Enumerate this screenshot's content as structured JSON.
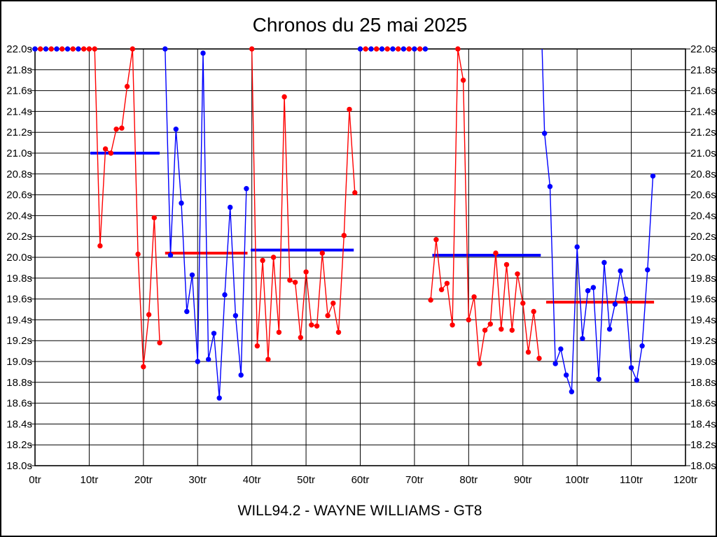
{
  "chart_data": {
    "type": "line",
    "title": "Chronos du 25 mai 2025",
    "footer": "WILL94.2 - WAYNE WILLIAMS - GT8",
    "x_axis": {
      "label_unit": "tr",
      "min": 0,
      "max": 120,
      "tick_step": 10,
      "tick_labels": [
        "0tr",
        "10tr",
        "20tr",
        "30tr",
        "40tr",
        "50tr",
        "60tr",
        "70tr",
        "80tr",
        "90tr",
        "100tr",
        "110tr",
        "120tr"
      ]
    },
    "y_axis": {
      "label_unit": "s",
      "min": 18.0,
      "max": 22.0,
      "tick_step": 0.2,
      "clip_max": 22.0,
      "tick_labels": [
        "22.0s",
        "21.8s",
        "21.6s",
        "21.4s",
        "21.2s",
        "21.0s",
        "20.8s",
        "20.6s",
        "20.4s",
        "20.2s",
        "20.0s",
        "19.8s",
        "19.6s",
        "19.4s",
        "19.2s",
        "19.0s",
        "18.8s",
        "18.6s",
        "18.4s",
        "18.2s",
        "18.0s"
      ]
    },
    "colors": {
      "red": "#ff0000",
      "blue": "#0000ff",
      "grid": "#000000",
      "background": "#ffffff"
    },
    "grid": true,
    "legend": "none",
    "series": [
      {
        "name": "stint-1-red",
        "color": "red",
        "points": [
          [
            0,
            22.0,
            "b"
          ],
          [
            1,
            22.0,
            "r"
          ],
          [
            2,
            22.0,
            "b"
          ],
          [
            3,
            22.0,
            "r"
          ],
          [
            4,
            22.0,
            "b"
          ],
          [
            5,
            22.0,
            "r"
          ],
          [
            6,
            22.0,
            "b"
          ],
          [
            7,
            22.0,
            "r"
          ],
          [
            8,
            22.0,
            "b"
          ],
          [
            9,
            22.0,
            "r"
          ],
          [
            10,
            22.0,
            "r"
          ],
          [
            11,
            22.0,
            "r"
          ],
          [
            12,
            20.11
          ],
          [
            13,
            21.04
          ],
          [
            14,
            21.0
          ],
          [
            15,
            21.23
          ],
          [
            16,
            21.24
          ],
          [
            17,
            21.64
          ],
          [
            18,
            22.0
          ],
          [
            19,
            20.03
          ],
          [
            20,
            18.95
          ],
          [
            21,
            19.45
          ],
          [
            22,
            20.38
          ],
          [
            23,
            19.18
          ]
        ]
      },
      {
        "name": "stint-2-blue",
        "color": "blue",
        "points": [
          [
            24,
            22.0
          ],
          [
            25,
            20.02
          ],
          [
            26,
            21.23
          ],
          [
            27,
            20.52
          ],
          [
            28,
            19.48
          ],
          [
            29,
            19.83
          ],
          [
            30,
            19.0
          ],
          [
            31,
            21.96
          ],
          [
            32,
            19.02
          ],
          [
            33,
            19.27
          ],
          [
            34,
            18.65
          ],
          [
            35,
            19.64
          ],
          [
            36,
            20.48
          ],
          [
            37,
            19.44
          ],
          [
            38,
            18.87
          ],
          [
            39,
            20.66
          ]
        ]
      },
      {
        "name": "stint-3-red",
        "color": "red",
        "points": [
          [
            40,
            22.0
          ],
          [
            41,
            19.15
          ],
          [
            42,
            19.97
          ],
          [
            43,
            19.02
          ],
          [
            44,
            20.0
          ],
          [
            45,
            19.28
          ],
          [
            46,
            21.54
          ],
          [
            47,
            19.78
          ],
          [
            48,
            19.76
          ],
          [
            49,
            19.23
          ],
          [
            50,
            19.86
          ],
          [
            51,
            19.35
          ],
          [
            52,
            19.34
          ],
          [
            53,
            20.04
          ],
          [
            54,
            19.44
          ],
          [
            55,
            19.56
          ],
          [
            56,
            19.28
          ],
          [
            57,
            20.21
          ],
          [
            58,
            21.42
          ],
          [
            59,
            20.62
          ]
        ]
      },
      {
        "name": "pit-run-red",
        "color": "red",
        "points": [
          [
            60,
            22.0,
            "b"
          ],
          [
            61,
            22.0,
            "r"
          ],
          [
            62,
            22.0,
            "b"
          ],
          [
            63,
            22.0,
            "r"
          ],
          [
            64,
            22.0,
            "b"
          ],
          [
            65,
            22.0,
            "r"
          ],
          [
            66,
            22.0,
            "b"
          ],
          [
            67,
            22.0,
            "r"
          ],
          [
            68,
            22.0,
            "b"
          ],
          [
            69,
            22.0,
            "r"
          ],
          [
            70,
            22.0,
            "b"
          ],
          [
            71,
            22.0,
            "r"
          ],
          [
            72,
            22.0,
            "b"
          ]
        ]
      },
      {
        "name": "stint-4-red",
        "color": "red",
        "points": [
          [
            73,
            19.59
          ],
          [
            74,
            20.17
          ],
          [
            75,
            19.69
          ],
          [
            76,
            19.75
          ],
          [
            77,
            19.35
          ],
          [
            78,
            22.0
          ],
          [
            79,
            21.7
          ],
          [
            80,
            19.4
          ],
          [
            81,
            19.62
          ],
          [
            82,
            18.98
          ],
          [
            83,
            19.3
          ],
          [
            84,
            19.36
          ],
          [
            85,
            20.04
          ],
          [
            86,
            19.31
          ],
          [
            87,
            19.93
          ],
          [
            88,
            19.3
          ],
          [
            89,
            19.84
          ],
          [
            90,
            19.56
          ],
          [
            91,
            19.09
          ],
          [
            92,
            19.48
          ],
          [
            93,
            19.03
          ]
        ]
      },
      {
        "name": "stint-5-blue",
        "color": "blue",
        "points": [
          [
            93.55,
            22.0,
            "none"
          ],
          [
            94,
            21.19
          ],
          [
            95,
            20.68
          ],
          [
            96,
            18.98
          ],
          [
            97,
            19.12
          ],
          [
            98,
            18.87
          ],
          [
            99,
            18.71
          ],
          [
            100,
            20.1
          ],
          [
            101,
            19.22
          ],
          [
            102,
            19.68
          ],
          [
            103,
            19.71
          ],
          [
            104,
            18.83
          ],
          [
            105,
            19.95
          ],
          [
            106,
            19.31
          ],
          [
            107,
            19.55
          ],
          [
            108,
            19.87
          ],
          [
            109,
            19.6
          ],
          [
            110,
            18.94
          ],
          [
            111,
            18.82
          ],
          [
            112,
            19.15
          ],
          [
            113,
            19.88
          ],
          [
            114,
            20.78
          ]
        ]
      }
    ],
    "average_lines": [
      {
        "name": "avg-stint-1",
        "color": "blue",
        "time": 21.0,
        "from_lap": 10.2,
        "to_lap": 23.0
      },
      {
        "name": "avg-stint-2",
        "color": "red",
        "time": 20.04,
        "from_lap": 24.0,
        "to_lap": 39.2
      },
      {
        "name": "avg-stint-3",
        "color": "blue",
        "time": 20.07,
        "from_lap": 39.8,
        "to_lap": 58.8
      },
      {
        "name": "avg-stint-4",
        "color": "blue",
        "time": 20.02,
        "from_lap": 73.3,
        "to_lap": 93.3
      },
      {
        "name": "avg-stint-5",
        "color": "red",
        "time": 19.57,
        "from_lap": 94.3,
        "to_lap": 114.2
      }
    ]
  }
}
